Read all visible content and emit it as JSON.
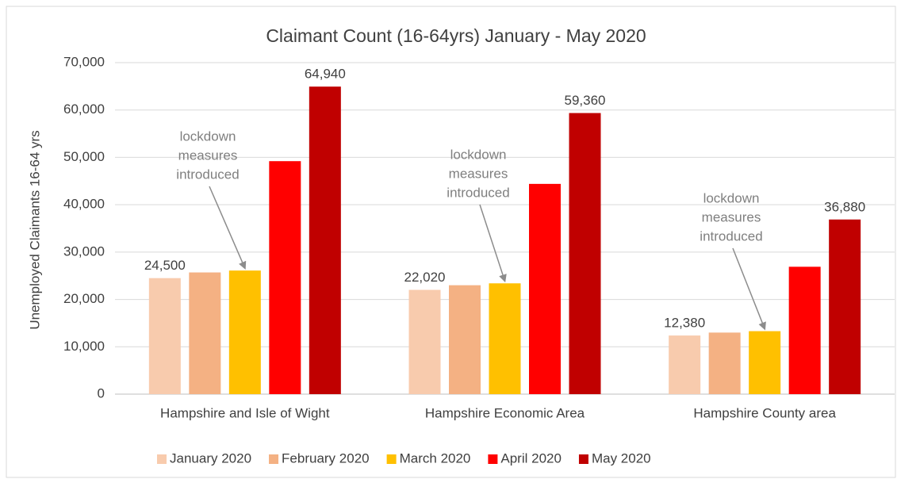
{
  "chart_data": {
    "type": "bar",
    "title": "Claimant Count (16-64yrs) January - May 2020",
    "y_label": "Unemployed Claimants 16-64 yrs",
    "categories": [
      "Hampshire and Isle of Wight",
      "Hampshire Economic Area",
      "Hampshire County area"
    ],
    "series": [
      {
        "name": "January 2020",
        "color": "#f8cbad",
        "values": [
          24500,
          22020,
          12380
        ],
        "value_labels": [
          "24,500",
          "22,020",
          "12,380"
        ]
      },
      {
        "name": "February 2020",
        "color": "#f4b183",
        "values": [
          25700,
          23000,
          13000
        ]
      },
      {
        "name": "March 2020",
        "color": "#ffc000",
        "values": [
          26100,
          23400,
          13300
        ]
      },
      {
        "name": "April 2020",
        "color": "#ff0000",
        "values": [
          49200,
          44400,
          26900
        ]
      },
      {
        "name": "May 2020",
        "color": "#c00000",
        "values": [
          64940,
          59360,
          36880
        ],
        "value_labels": [
          "64,940",
          "59,360",
          "36,880"
        ]
      }
    ],
    "ylim": [
      0,
      70000
    ],
    "yticks": [
      0,
      {
        "value": 10000,
        "label": "10,000"
      },
      {
        "value": 20000,
        "label": "20,000"
      },
      {
        "value": 30000,
        "label": "30,000"
      },
      {
        "value": 40000,
        "label": "40,000"
      },
      {
        "value": 50000,
        "label": "50,000"
      },
      {
        "value": 60000,
        "label": "60,000"
      },
      {
        "value": 70000,
        "label": "70,000"
      }
    ],
    "grid": true,
    "legend": "bottom",
    "annotations": [
      [
        "lockdown",
        "measures",
        "introduced"
      ],
      [
        "lockdown",
        "measures",
        "introduced"
      ],
      [
        "lockdown",
        "measures",
        "introduced"
      ]
    ]
  }
}
